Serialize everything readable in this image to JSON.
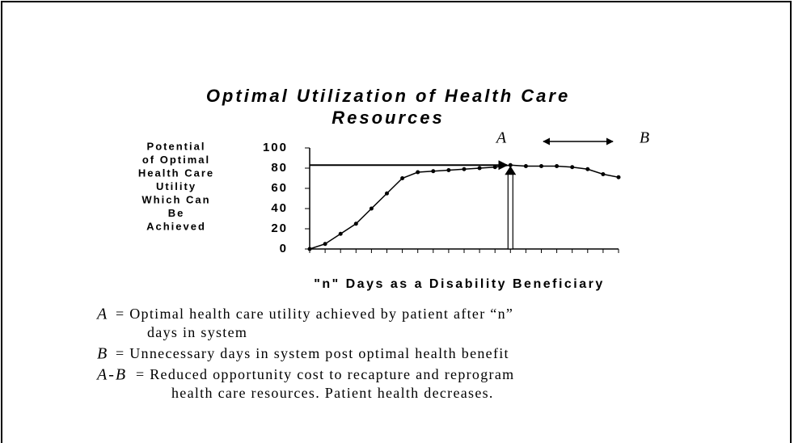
{
  "chart_data": {
    "type": "line",
    "title": [
      "Optimal Utilization of Health Care",
      "Resources"
    ],
    "y_label": [
      "Potential",
      "of Optimal",
      "Health Care",
      "Utility",
      "Which Can",
      "Be",
      "Achieved"
    ],
    "x_label": "\"n\" Days as a Disability Beneficiary",
    "categories": [
      null,
      null,
      null,
      null,
      null,
      null,
      null,
      null,
      null,
      null,
      null,
      null,
      null,
      null,
      null,
      null,
      null,
      null,
      null,
      null,
      null
    ],
    "values": [
      0,
      5,
      15,
      25,
      40,
      55,
      70,
      76,
      77,
      78,
      79,
      80,
      81,
      83,
      82,
      82,
      82,
      81,
      79,
      74,
      71
    ],
    "color": "#000000",
    "ylim": [
      0,
      100
    ],
    "yticks": [
      0,
      20,
      40,
      60,
      80,
      100
    ],
    "annotations": [
      "A",
      "B"
    ],
    "definitions": [
      {
        "term": "A",
        "lines": [
          "= Optimal health care utility achieved by patient after “n”",
          "days in system"
        ]
      },
      {
        "term": "B",
        "lines": [
          "= Unnecessary days in system post optimal health benefit"
        ]
      },
      {
        "term": "A-B",
        "lines": [
          "= Reduced opportunity cost to recapture and reprogram",
          "health care resources. Patient health decreases."
        ]
      }
    ]
  }
}
